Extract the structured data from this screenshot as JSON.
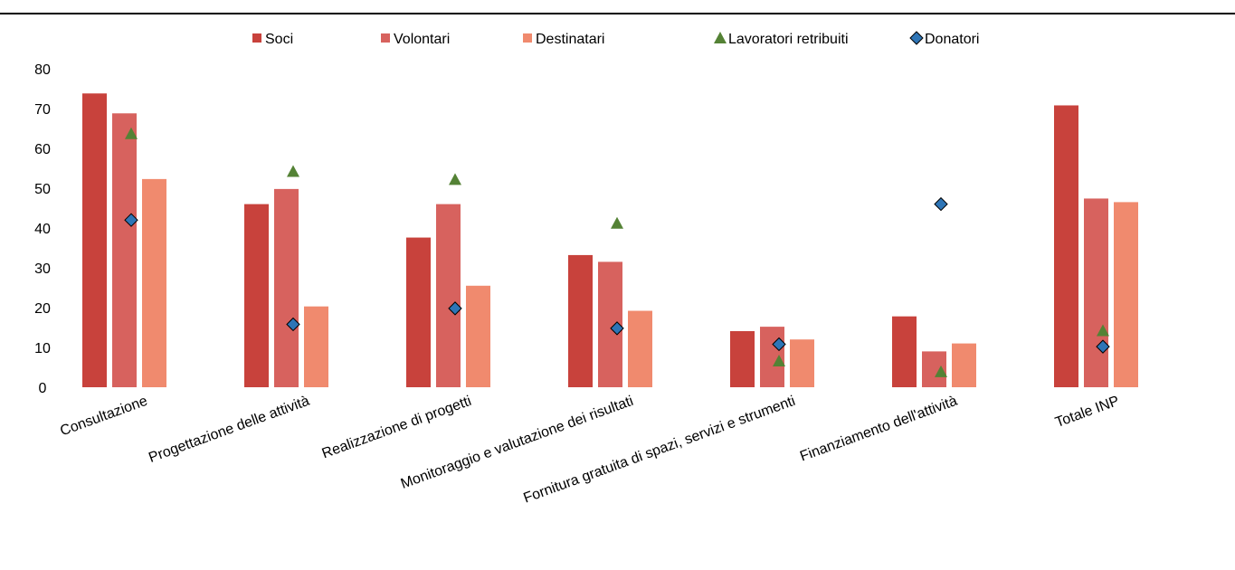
{
  "chart_data": {
    "type": "bar",
    "categories": [
      "Consultazione",
      "Progettazione delle attività",
      "Realizzazione di progetti",
      "Monitoraggio e valutazione dei risultati",
      "Fornitura gratuita di spazi, servizi e strumenti",
      "Finanziamento dell'attività",
      "Totale INP"
    ],
    "series": [
      {
        "name": "Soci",
        "kind": "bar",
        "color": "#c8423c",
        "marker": "square",
        "values": [
          73.8,
          46.0,
          37.6,
          33.2,
          14.1,
          17.8,
          70.8
        ]
      },
      {
        "name": "Volontari",
        "kind": "bar",
        "color": "#d7625e",
        "marker": "square",
        "values": [
          68.8,
          49.8,
          46.0,
          31.5,
          15.2,
          9.0,
          47.4
        ]
      },
      {
        "name": "Destinatari",
        "kind": "bar",
        "color": "#f08a6e",
        "marker": "square",
        "values": [
          52.3,
          20.3,
          25.5,
          19.2,
          12.0,
          11.0,
          46.5
        ]
      },
      {
        "name": "Lavoratori retribuiti",
        "kind": "marker",
        "color": "#548235",
        "marker": "triangle",
        "values": [
          63.7,
          54.2,
          52.2,
          41.2,
          6.6,
          3.9,
          14.2
        ]
      },
      {
        "name": "Donatori",
        "kind": "marker",
        "color": "#2e75b6",
        "marker": "diamond",
        "values": [
          42.0,
          15.8,
          19.8,
          14.8,
          10.8,
          46.0,
          10.2
        ]
      }
    ],
    "yticks": [
      "0",
      "10",
      "20",
      "30",
      "40",
      "50",
      "60",
      "70",
      "80"
    ],
    "ylim": [
      0,
      80
    ],
    "legend_position": "top",
    "grid": false
  }
}
